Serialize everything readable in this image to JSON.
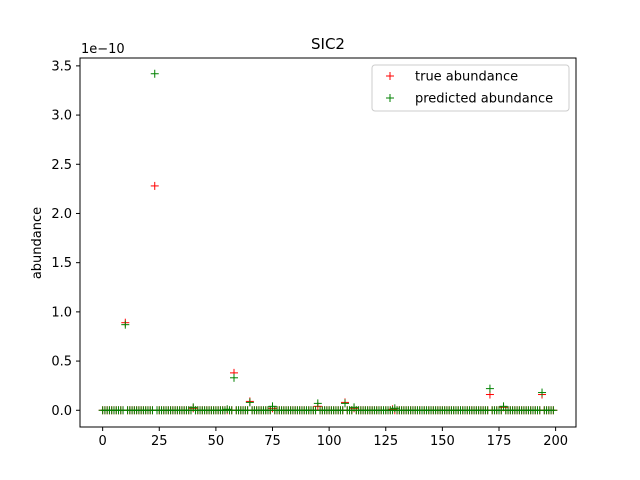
{
  "chart_data": {
    "type": "scatter",
    "title": "SIC2",
    "xlabel": "",
    "ylabel": "abundance",
    "y_scale_label": "1e−10",
    "xlim": [
      -10,
      209
    ],
    "ylim": [
      -0.17,
      3.58
    ],
    "x_ticks": [
      0,
      25,
      50,
      75,
      100,
      125,
      150,
      175,
      200
    ],
    "y_ticks": [
      0.0,
      0.5,
      1.0,
      1.5,
      2.0,
      2.5,
      3.0,
      3.5
    ],
    "x_tick_labels": [
      "0",
      "25",
      "50",
      "75",
      "100",
      "125",
      "150",
      "175",
      "200"
    ],
    "y_tick_labels": [
      "0.0",
      "0.5",
      "1.0",
      "1.5",
      "2.0",
      "2.5",
      "3.0",
      "3.5"
    ],
    "marker": "+",
    "legend_position": "top-right",
    "n_points": 200,
    "baseline_value": 0.0,
    "series": [
      {
        "name": "true abundance",
        "color": "#ff0000",
        "nonzero_points": [
          {
            "x": 10,
            "y": 0.89
          },
          {
            "x": 23,
            "y": 2.28
          },
          {
            "x": 40,
            "y": 0.02
          },
          {
            "x": 58,
            "y": 0.38
          },
          {
            "x": 65,
            "y": 0.09
          },
          {
            "x": 75,
            "y": 0.02
          },
          {
            "x": 95,
            "y": 0.04
          },
          {
            "x": 107,
            "y": 0.08
          },
          {
            "x": 111,
            "y": 0.02
          },
          {
            "x": 128,
            "y": 0.01
          },
          {
            "x": 171,
            "y": 0.16
          },
          {
            "x": 177,
            "y": 0.03
          },
          {
            "x": 194,
            "y": 0.16
          }
        ]
      },
      {
        "name": "predicted abundance",
        "color": "#008000",
        "nonzero_points": [
          {
            "x": 10,
            "y": 0.87
          },
          {
            "x": 23,
            "y": 3.42
          },
          {
            "x": 40,
            "y": 0.03
          },
          {
            "x": 55,
            "y": 0.01
          },
          {
            "x": 58,
            "y": 0.33
          },
          {
            "x": 65,
            "y": 0.08
          },
          {
            "x": 75,
            "y": 0.04
          },
          {
            "x": 95,
            "y": 0.07
          },
          {
            "x": 107,
            "y": 0.07
          },
          {
            "x": 111,
            "y": 0.03
          },
          {
            "x": 129,
            "y": 0.02
          },
          {
            "x": 171,
            "y": 0.22
          },
          {
            "x": 177,
            "y": 0.04
          },
          {
            "x": 194,
            "y": 0.18
          }
        ]
      }
    ]
  }
}
